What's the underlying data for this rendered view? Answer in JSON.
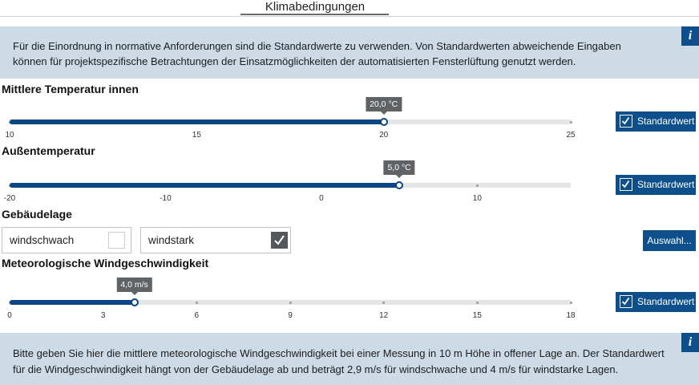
{
  "tab": "Klimabedingungen",
  "info_icon": "i",
  "info_top": {
    "lines": [
      "Für die Einordnung in normative Anforderungen sind die Standardwerte zu verwenden. Von Standardwerten abweichende Eingaben",
      "können für projektspezifische Betrachtungen der Einsatzmöglichkeiten der  automatisierten Fensterlüftung genutzt werden."
    ]
  },
  "sections": [
    {
      "title": "Mittlere Temperatur innen",
      "slider": {
        "min": 10,
        "max": 25,
        "ticks": [
          10,
          15,
          20,
          25
        ],
        "value": 20,
        "value_label": "20,0 °C"
      },
      "button": "Standardwert",
      "checked": true
    },
    {
      "title": "Außentemperatur",
      "slider": {
        "min": -20,
        "max": 16,
        "ticks": [
          -20,
          -10,
          0,
          10
        ],
        "value": 5,
        "value_label": "5,0 °C"
      },
      "button": "Standardwert",
      "checked": true
    },
    {
      "title": "Gebäudelage",
      "options": [
        {
          "label": "windschwach",
          "checked": false
        },
        {
          "label": "windstark",
          "checked": true
        }
      ],
      "button": "Auswahl..."
    },
    {
      "title": "Meteorologische Windgeschwindigkeit",
      "slider": {
        "min": 0,
        "max": 18,
        "ticks": [
          0,
          3,
          6,
          9,
          12,
          15,
          18
        ],
        "value": 4,
        "value_label": "4,0 m/s"
      },
      "button": "Standardwert",
      "checked": true
    }
  ],
  "info_bottom": {
    "lines": [
      "Bitte geben Sie hier die mittlere meteorologische Windgeschwindigkeit bei einer Messung in 10 m Höhe in offener Lage an. Der Standardwert",
      "für die Windgeschwindigkeit hängt von der Gebäudelage ab und beträgt  2,9 m/s für windschwache und 4 m/s für windstarke Lagen."
    ]
  }
}
